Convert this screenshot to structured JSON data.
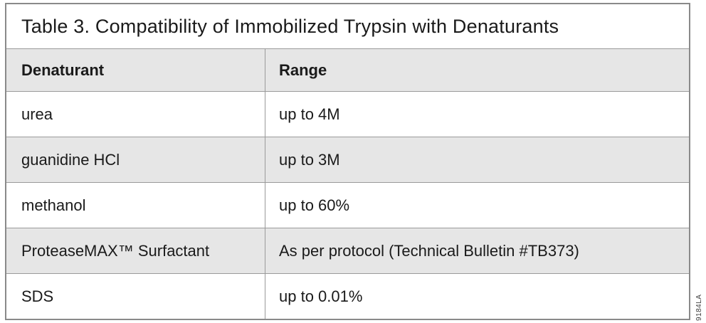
{
  "title": "Table 3. Compatibility of Immobilized Trypsin with Denaturants",
  "table": {
    "headers": [
      "Denaturant",
      "Range"
    ],
    "rows": [
      {
        "denaturant": "urea",
        "range": "up to 4M"
      },
      {
        "denaturant": "guanidine HCl",
        "range": "up to 3M"
      },
      {
        "denaturant": "methanol",
        "range": "up to 60%"
      },
      {
        "denaturant": "ProteaseMAX™ Surfactant",
        "range": "As per protocol (Technical Bulletin #TB373)"
      },
      {
        "denaturant": "SDS",
        "range": "up to 0.01%"
      }
    ]
  },
  "part_code": "9184LA",
  "colors": {
    "row_shaded": "#e6e6e6",
    "row_plain": "#ffffff",
    "border_outer": "#8a8a8a",
    "border_inner": "#9a9a9a",
    "text": "#1a1a1a"
  }
}
